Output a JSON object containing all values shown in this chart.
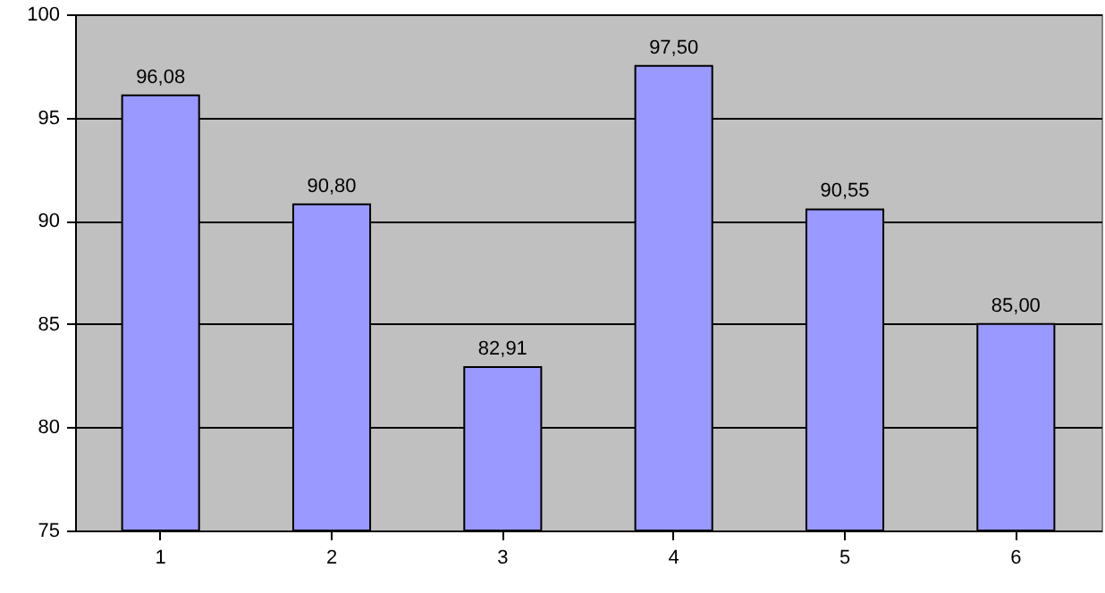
{
  "chart_data": {
    "type": "bar",
    "categories": [
      "1",
      "2",
      "3",
      "4",
      "5",
      "6"
    ],
    "values": [
      96.08,
      90.8,
      82.91,
      97.5,
      90.55,
      85.0
    ],
    "value_labels": [
      "96,08",
      "90,80",
      "82,91",
      "97,50",
      "90,55",
      "85,00"
    ],
    "color": "#9999ff",
    "ylim": [
      75,
      100
    ],
    "yticks": [
      75,
      80,
      85,
      90,
      95,
      100
    ],
    "grid": "y"
  }
}
